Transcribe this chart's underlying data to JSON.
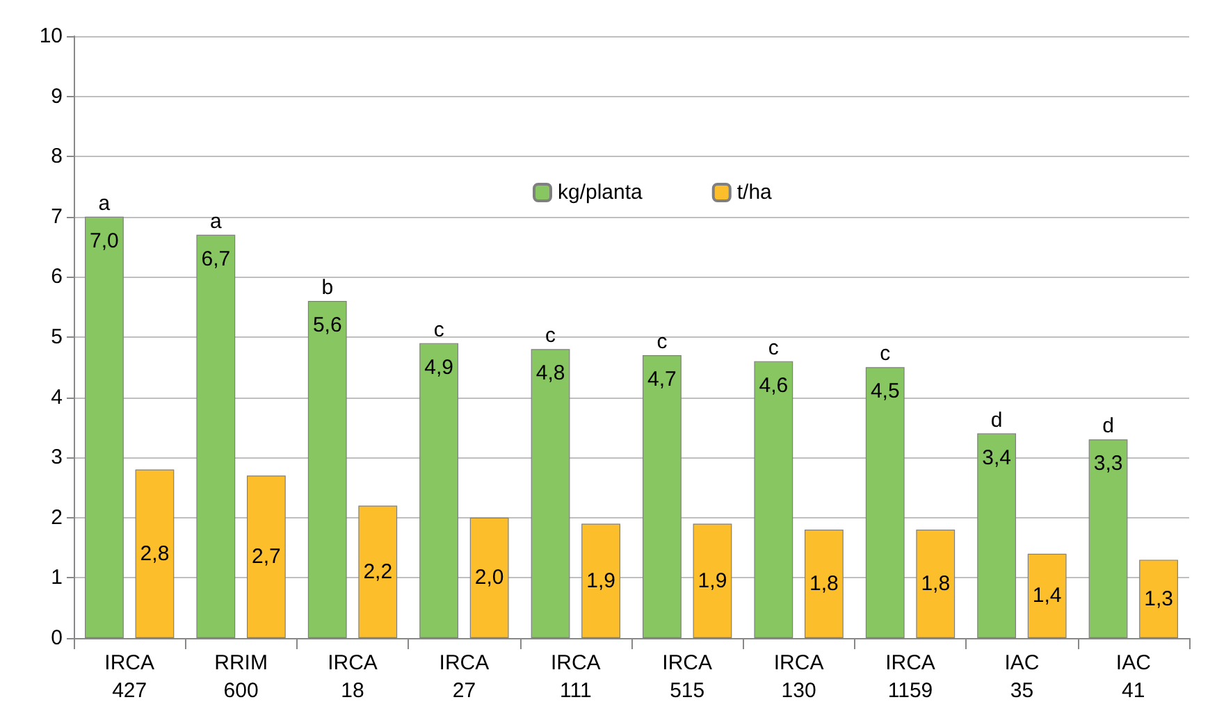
{
  "chart_data": {
    "type": "bar",
    "categories": [
      "IRCA 427",
      "RRIM 600",
      "IRCA 18",
      "IRCA 27",
      "IRCA 111",
      "IRCA 515",
      "IRCA 130",
      "IRCA 1159",
      "IAC 35",
      "IAC 41"
    ],
    "series": [
      {
        "name": "kg/planta",
        "color": "#88c662",
        "values": [
          7.0,
          6.7,
          5.6,
          4.9,
          4.8,
          4.7,
          4.6,
          4.5,
          3.4,
          3.3
        ],
        "value_labels": [
          "7,0",
          "6,7",
          "5,6",
          "4,9",
          "4,8",
          "4,7",
          "4,6",
          "4,5",
          "3,4",
          "3,3"
        ]
      },
      {
        "name": "t/ha",
        "color": "#fdbe2b",
        "values": [
          2.8,
          2.7,
          2.2,
          2.0,
          1.9,
          1.9,
          1.8,
          1.8,
          1.4,
          1.3
        ],
        "value_labels": [
          "2,8",
          "2,7",
          "2,2",
          "2,0",
          "1,9",
          "1,9",
          "1,8",
          "1,8",
          "1,4",
          "1,3"
        ]
      }
    ],
    "annotations": [
      {
        "text": "a",
        "x": "IRCA 427",
        "y": 7.0
      },
      {
        "text": "a",
        "x": "RRIM 600",
        "y": 6.7
      },
      {
        "text": "b",
        "x": "IRCA 18",
        "y": 5.6
      },
      {
        "text": "c",
        "x": "IRCA 27",
        "y": 4.9
      },
      {
        "text": "c",
        "x": "IRCA 111",
        "y": 4.8
      },
      {
        "text": "c",
        "x": "IRCA 515",
        "y": 4.7
      },
      {
        "text": "c",
        "x": "IRCA 130",
        "y": 4.6
      },
      {
        "text": "c",
        "x": "IRCA 1159",
        "y": 4.5
      },
      {
        "text": "d",
        "x": "IAC 35",
        "y": 3.4
      },
      {
        "text": "d",
        "x": "IAC 41",
        "y": 3.3
      }
    ],
    "ylim": [
      0,
      10
    ],
    "yticks": [
      0,
      1,
      2,
      3,
      4,
      5,
      6,
      7,
      8,
      9,
      10
    ],
    "grid": "y",
    "legend": "top"
  }
}
